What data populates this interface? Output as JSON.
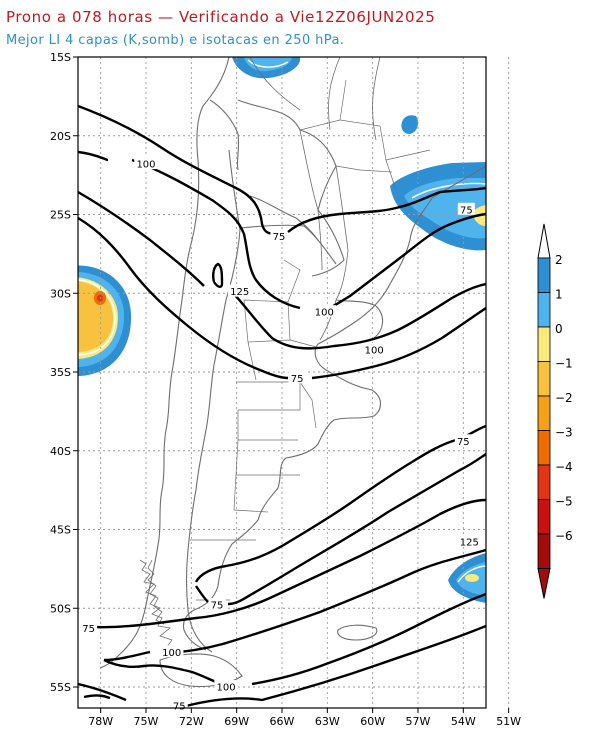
{
  "header": {
    "title": "Prono a 078 horas — Verificando a Vie12Z06JUN2025",
    "subtitle": "Mejor LI 4 capas (K,somb) e isotacas en 250 hPa."
  },
  "map": {
    "lat_ticks": [
      "15S",
      "20S",
      "25S",
      "30S",
      "35S",
      "40S",
      "45S",
      "50S",
      "55S"
    ],
    "lon_ticks": [
      "78W",
      "75W",
      "72W",
      "69W",
      "66W",
      "63W",
      "60W",
      "57W",
      "54W",
      "51W"
    ],
    "isotach_labels": [
      {
        "text": "100",
        "lon": -75.0,
        "lat": -21.8
      },
      {
        "text": "75",
        "lon": -66.2,
        "lat": -26.4
      },
      {
        "text": "75",
        "lon": -53.8,
        "lat": -24.7
      },
      {
        "text": "125",
        "lon": -68.8,
        "lat": -29.9
      },
      {
        "text": "100",
        "lon": -63.2,
        "lat": -31.2
      },
      {
        "text": "100",
        "lon": -59.9,
        "lat": -33.6
      },
      {
        "text": "75",
        "lon": -65.0,
        "lat": -35.4
      },
      {
        "text": "75",
        "lon": -54.0,
        "lat": -39.4
      },
      {
        "text": "125",
        "lon": -53.6,
        "lat": -45.8
      },
      {
        "text": "75",
        "lon": -70.3,
        "lat": -49.8
      },
      {
        "text": "75",
        "lon": -78.8,
        "lat": -51.3
      },
      {
        "text": "100",
        "lon": -73.3,
        "lat": -52.8
      },
      {
        "text": "100",
        "lon": -69.7,
        "lat": -55.0
      },
      {
        "text": "75",
        "lon": -72.8,
        "lat": -56.2
      }
    ]
  },
  "colorbar": {
    "labels": [
      "2",
      "1",
      "0",
      "−1",
      "−2",
      "−3",
      "−4",
      "−5",
      "−6"
    ],
    "colors": [
      "#2f8fd3",
      "#4fb4ee",
      "#fbe97b",
      "#f9c23e",
      "#f5a015",
      "#f06b00",
      "#e33513",
      "#cc1010",
      "#a50b0b"
    ]
  }
}
